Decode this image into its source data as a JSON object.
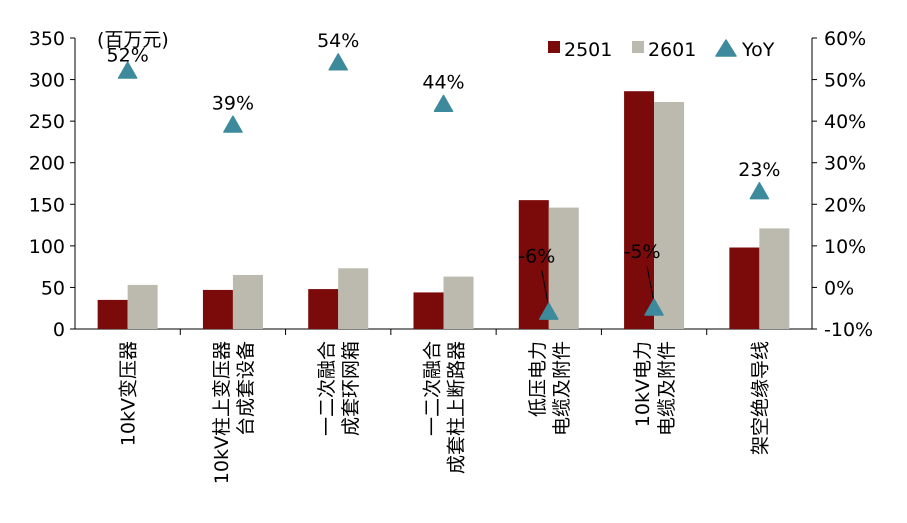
{
  "chart_data": {
    "type": "bar",
    "unit_label": "(百万元)",
    "categories": [
      [
        "10kV变压器"
      ],
      [
        "10kV柱上变压器",
        "台成套设备"
      ],
      [
        "一二次融合",
        "成套环网箱"
      ],
      [
        "一二次融合",
        "成套柱上断路器"
      ],
      [
        "低压电力",
        "电缆及附件"
      ],
      [
        "10kV电力",
        "电缆及附件"
      ],
      [
        "架空绝缘导线"
      ]
    ],
    "series": [
      {
        "name": "2501",
        "color": "#7b0a0a",
        "values": [
          35,
          47,
          48,
          44,
          155,
          286,
          98
        ]
      },
      {
        "name": "2601",
        "color": "#bcbaae",
        "values": [
          53,
          65,
          73,
          63,
          146,
          273,
          121
        ]
      }
    ],
    "yoy": {
      "name": "YoY",
      "color": "#3c8a9c",
      "values": [
        52,
        39,
        54,
        44,
        -6,
        -5,
        23
      ],
      "labels": [
        "52%",
        "39%",
        "54%",
        "44%",
        "-6%",
        "-5%",
        "23%"
      ]
    },
    "y_left": {
      "min": 0,
      "max": 350,
      "step": 50,
      "ticks": [
        "0",
        "50",
        "100",
        "150",
        "200",
        "250",
        "300",
        "350"
      ]
    },
    "y_right": {
      "min": -10,
      "max": 60,
      "step": 10,
      "ticks": [
        "-10%",
        "0%",
        "10%",
        "20%",
        "30%",
        "40%",
        "50%",
        "60%"
      ]
    },
    "legend_placement": "top-right",
    "grid": false
  }
}
